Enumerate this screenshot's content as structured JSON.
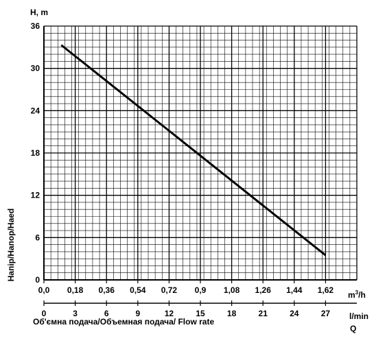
{
  "chart_data": {
    "type": "line",
    "y_axis_title": "H, m",
    "ylabel": "Напір/Напор/Наed",
    "x_units_top": "m³/h",
    "x_units_bottom": "l/min",
    "xlabel": "Об'ємна подача/Объемная подача/ Flow rate",
    "x_symbol": "Q",
    "ylim": [
      0,
      36
    ],
    "y_ticks": [
      "0",
      "6",
      "12",
      "18",
      "24",
      "30",
      "36"
    ],
    "x_top_lim": [
      0,
      1.8
    ],
    "x_top_ticks": [
      "0,0",
      "0,18",
      "0,36",
      "0,54",
      "0,72",
      "0,9",
      "1,08",
      "1,26",
      "1,44",
      "1,62"
    ],
    "x_bottom_ticks": [
      "0",
      "3",
      "6",
      "9",
      "12",
      "15",
      "18",
      "21",
      "24",
      "27"
    ],
    "grid": true,
    "series": [
      {
        "x": [
          0.1,
          1.62
        ],
        "y": [
          33.3,
          3.5
        ],
        "color": "#000000"
      }
    ]
  }
}
